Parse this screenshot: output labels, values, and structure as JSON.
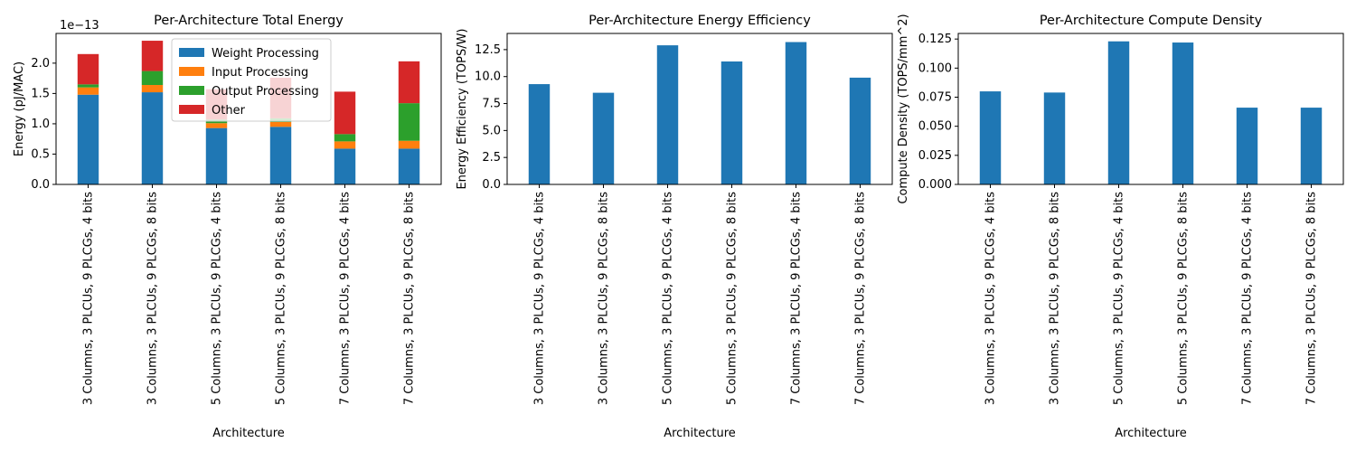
{
  "chart_data": [
    {
      "type": "bar",
      "stacked": true,
      "title": "Per-Architecture Total Energy",
      "xlabel": "Architecture",
      "ylabel": "Energy (pJ/MAC)",
      "y_offset_text": "1e−13",
      "ylim": [
        0,
        2.49
      ],
      "yticks": [
        "0.0",
        "0.5",
        "1.0",
        "1.5",
        "2.0"
      ],
      "grid": false,
      "legend_position": "upper center",
      "categories": [
        "3 Columns, 3 PLCUs, 9 PLCGs, 4 bits",
        "3 Columns, 3 PLCUs, 9 PLCGs, 8 bits",
        "5 Columns, 3 PLCUs, 9 PLCGs, 4 bits",
        "5 Columns, 3 PLCUs, 9 PLCGs, 8 bits",
        "7 Columns, 3 PLCUs, 9 PLCGs, 4 bits",
        "7 Columns, 3 PLCUs, 9 PLCGs, 8 bits"
      ],
      "series": [
        {
          "name": "Weight Processing",
          "color": "#1f77b4",
          "values": [
            1.48,
            1.52,
            0.93,
            0.95,
            0.59,
            0.59
          ]
        },
        {
          "name": "Input Processing",
          "color": "#ff7f0e",
          "values": [
            0.12,
            0.12,
            0.08,
            0.08,
            0.12,
            0.13
          ]
        },
        {
          "name": "Output Processing",
          "color": "#2ca02c",
          "values": [
            0.05,
            0.23,
            0.06,
            0.06,
            0.12,
            0.62
          ]
        },
        {
          "name": "Other",
          "color": "#d62728",
          "values": [
            0.5,
            0.5,
            0.5,
            0.67,
            0.7,
            0.69
          ]
        }
      ]
    },
    {
      "type": "bar",
      "title": "Per-Architecture Energy Efficiency",
      "xlabel": "Architecture",
      "ylabel": "Energy Efficiency (TOPS/W)",
      "ylim": [
        0,
        14.0
      ],
      "yticks": [
        "0.0",
        "2.5",
        "5.0",
        "7.5",
        "10.0",
        "12.5"
      ],
      "grid": false,
      "categories": [
        "3 Columns, 3 PLCUs, 9 PLCGs, 4 bits",
        "3 Columns, 3 PLCUs, 9 PLCGs, 8 bits",
        "5 Columns, 3 PLCUs, 9 PLCGs, 4 bits",
        "5 Columns, 3 PLCUs, 9 PLCGs, 8 bits",
        "7 Columns, 3 PLCUs, 9 PLCGs, 4 bits",
        "7 Columns, 3 PLCUs, 9 PLCGs, 8 bits"
      ],
      "series": [
        {
          "color": "#1f77b4",
          "values": [
            9.3,
            8.5,
            12.9,
            11.4,
            13.2,
            9.9
          ]
        }
      ]
    },
    {
      "type": "bar",
      "title": "Per-Architecture Compute Density",
      "xlabel": "Architecture",
      "ylabel": "Compute Density (TOPS/mm^2)",
      "ylim": [
        0,
        0.1298
      ],
      "yticks": [
        "0.000",
        "0.025",
        "0.050",
        "0.075",
        "0.100",
        "0.125"
      ],
      "grid": false,
      "categories": [
        "3 Columns, 3 PLCUs, 9 PLCGs, 4 bits",
        "3 Columns, 3 PLCUs, 9 PLCGs, 8 bits",
        "5 Columns, 3 PLCUs, 9 PLCGs, 4 bits",
        "5 Columns, 3 PLCUs, 9 PLCGs, 8 bits",
        "7 Columns, 3 PLCUs, 9 PLCGs, 4 bits",
        "7 Columns, 3 PLCUs, 9 PLCGs, 8 bits"
      ],
      "series": [
        {
          "color": "#1f77b4",
          "values": [
            0.08,
            0.079,
            0.123,
            0.122,
            0.066,
            0.066
          ]
        }
      ]
    }
  ]
}
